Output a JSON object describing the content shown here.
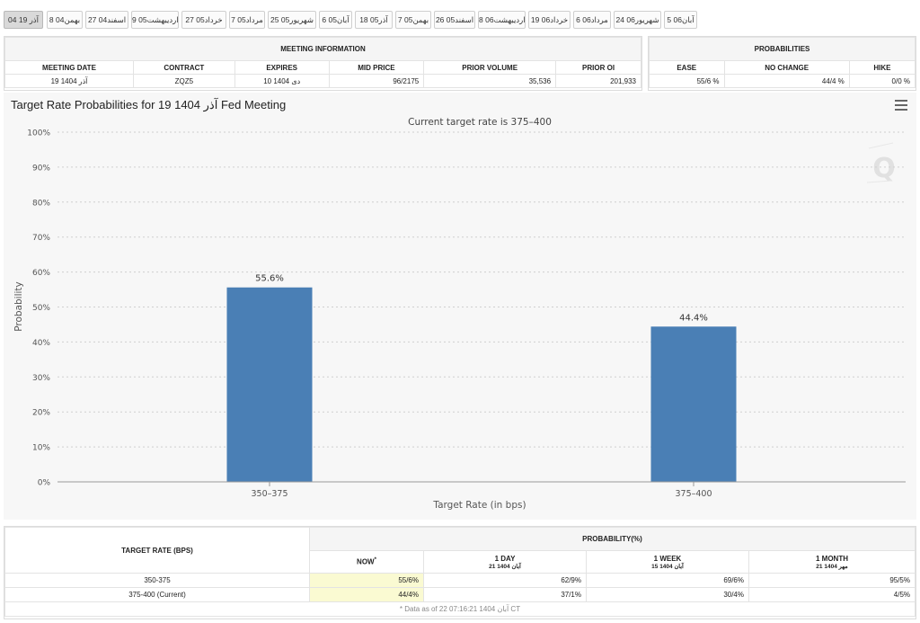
{
  "tabs": [
    "آذر 19 04",
    "بهمن04 8",
    "اسفند04 27",
    "اردیبهشت05 9",
    "خرداد05 27",
    "مرداد05 7",
    "شهریور05 25",
    "آبان05 6",
    "آذر05 18",
    "بهمن05 7",
    "اسفند05 26",
    "اردیبهشت06 8",
    "خرداد06 19",
    "مرداد06 6",
    "شهریور06 24",
    "آبان06 5"
  ],
  "meeting_info": {
    "title": "MEETING INFORMATION",
    "headers": [
      "MEETING DATE",
      "CONTRACT",
      "EXPIRES",
      "MID PRICE",
      "PRIOR VOLUME",
      "PRIOR OI"
    ],
    "row": [
      "آذر 1404 19",
      "ZQZ5",
      "دی 1404 10",
      "96/2175",
      "35,536",
      "201,933"
    ]
  },
  "probabilities": {
    "title": "PROBABILITIES",
    "headers": [
      "EASE",
      "NO CHANGE",
      "HIKE"
    ],
    "row": [
      "55/6 %",
      "44/4 %",
      "0/0 %"
    ]
  },
  "chart_title": "Target Rate Probabilities for 19 1404 آذر Fed Meeting",
  "chart_data": {
    "type": "bar",
    "title": "Target Rate Probabilities for 19 1404 آذر Fed Meeting",
    "subtitle": "Current target rate is 375–400",
    "categories": [
      "350–375",
      "375–400"
    ],
    "values": [
      55.6,
      44.4
    ],
    "data_labels": [
      "55.6%",
      "44.4%"
    ],
    "xlabel": "Target Rate (in bps)",
    "ylabel": "Probability",
    "ylim": [
      0,
      100
    ],
    "yticks": [
      "0%",
      "10%",
      "20%",
      "30%",
      "40%",
      "50%",
      "60%",
      "70%",
      "80%",
      "90%",
      "100%"
    ],
    "grid": true,
    "bar_color": "#4a7fb5"
  },
  "bottom_table": {
    "target_rate_header": "TARGET RATE (BPS)",
    "probability_header": "PROBABILITY(%)",
    "columns": [
      {
        "label": "NOW",
        "mark": "*",
        "sub": ""
      },
      {
        "label": "1 DAY",
        "sub": "آبان 1404 21"
      },
      {
        "label": "1 WEEK",
        "sub": "آبان 1404 15"
      },
      {
        "label": "1 MONTH",
        "sub": "مهر 1404 21"
      }
    ],
    "rows": [
      {
        "rate": "350-375",
        "values": [
          "55/6%",
          "62/9%",
          "69/6%",
          "95/5%"
        ]
      },
      {
        "rate": "375-400 (Current)",
        "values": [
          "44/4%",
          "37/1%",
          "30/4%",
          "4/5%"
        ]
      }
    ],
    "footnote": "* Data as of 22 07:16:21 1404 آبان CT"
  },
  "colors": {
    "highlight": "#fafad2",
    "accent": "#4a7fb5"
  }
}
